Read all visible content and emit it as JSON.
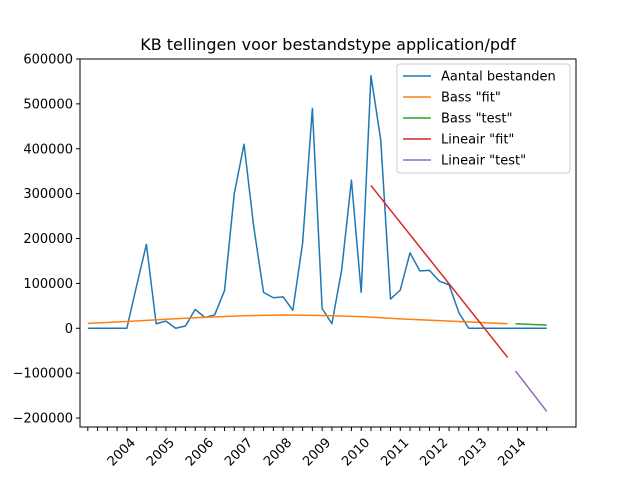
{
  "chart_data": {
    "type": "line",
    "title": "KB tellingen voor bestandstype application/pdf",
    "xlabel": "",
    "ylabel": "",
    "ylim": [
      -220000,
      600000
    ],
    "yticks": [
      -200000,
      -100000,
      0,
      100000,
      200000,
      300000,
      400000,
      500000,
      600000
    ],
    "ytick_labels": [
      "−200000",
      "−100000",
      "0",
      "100000",
      "200000",
      "300000",
      "400000",
      "500000",
      "600000"
    ],
    "xlim": [
      2002.8,
      2015.5
    ],
    "xticks": [
      2003.0,
      2003.25,
      2003.5,
      2003.75,
      2004.0,
      2004.25,
      2004.5,
      2004.75,
      2005.0,
      2005.25,
      2005.5,
      2005.75,
      2006.0,
      2006.25,
      2006.5,
      2006.75,
      2007.0,
      2007.25,
      2007.5,
      2007.75,
      2008.0,
      2008.25,
      2008.5,
      2008.75,
      2009.0,
      2009.25,
      2009.5,
      2009.75,
      2010.0,
      2010.25,
      2010.5,
      2010.75,
      2011.0,
      2011.25,
      2011.5,
      2011.75,
      2012.0,
      2012.25,
      2012.5,
      2012.75,
      2013.0,
      2013.25,
      2013.5,
      2013.75,
      2014.0,
      2014.25,
      2014.5,
      2014.75
    ],
    "xtick_labels": [
      "2004",
      "2005",
      "2006",
      "2007",
      "2008",
      "2009",
      "2010",
      "2011",
      "2012",
      "2013",
      "2014"
    ],
    "xtick_label_positions": [
      2004.0,
      2005.0,
      2006.0,
      2007.0,
      2008.0,
      2009.0,
      2010.0,
      2011.0,
      2012.0,
      2013.0,
      2014.0
    ],
    "legend": {
      "placement": "top-right"
    },
    "series": [
      {
        "name": "Aantal bestanden",
        "color": "#1f77b4",
        "x": [
          2003.0,
          2003.25,
          2003.5,
          2003.75,
          2004.0,
          2004.25,
          2004.5,
          2004.75,
          2005.0,
          2005.25,
          2005.5,
          2005.75,
          2006.0,
          2006.25,
          2006.5,
          2006.75,
          2007.0,
          2007.25,
          2007.5,
          2007.75,
          2008.0,
          2008.25,
          2008.5,
          2008.75,
          2009.0,
          2009.25,
          2009.5,
          2009.75,
          2010.0,
          2010.25,
          2010.5,
          2010.75,
          2011.0,
          2011.25,
          2011.5,
          2011.75,
          2012.0,
          2012.25,
          2012.5,
          2012.75,
          2013.0,
          2013.25,
          2013.5,
          2013.75,
          2014.0,
          2014.25,
          2014.5,
          2014.75
        ],
        "y": [
          0,
          0,
          0,
          0,
          0,
          95000,
          187000,
          10000,
          16000,
          0,
          5000,
          42000,
          24000,
          30000,
          84000,
          300000,
          410000,
          225000,
          80000,
          68000,
          70000,
          40000,
          190000,
          490000,
          44000,
          10000,
          130000,
          330000,
          80000,
          563000,
          420000,
          65000,
          85000,
          168000,
          128000,
          129000,
          105000,
          97000,
          35000,
          0,
          0,
          0,
          0,
          0,
          0,
          0,
          0,
          0
        ]
      },
      {
        "name": "Bass \"fit\"",
        "color": "#ff7f0e",
        "x": [
          2003.0,
          2004.0,
          2005.0,
          2006.0,
          2007.0,
          2008.0,
          2009.0,
          2010.0,
          2011.0,
          2012.0,
          2013.0,
          2013.75
        ],
        "y": [
          11000,
          15000,
          20000,
          24500,
          28000,
          29500,
          28500,
          26000,
          21000,
          17000,
          13000,
          10000
        ]
      },
      {
        "name": "Bass \"test\"",
        "color": "#2ca02c",
        "x": [
          2013.95,
          2014.75
        ],
        "y": [
          10000,
          7000
        ]
      },
      {
        "name": "Lineair \"fit\"",
        "color": "#d62728",
        "x": [
          2010.25,
          2013.75
        ],
        "y": [
          318000,
          -65000
        ]
      },
      {
        "name": "Lineair \"test\"",
        "color": "#9467bd",
        "x": [
          2013.95,
          2014.75
        ],
        "y": [
          -95000,
          -185000
        ]
      }
    ]
  }
}
